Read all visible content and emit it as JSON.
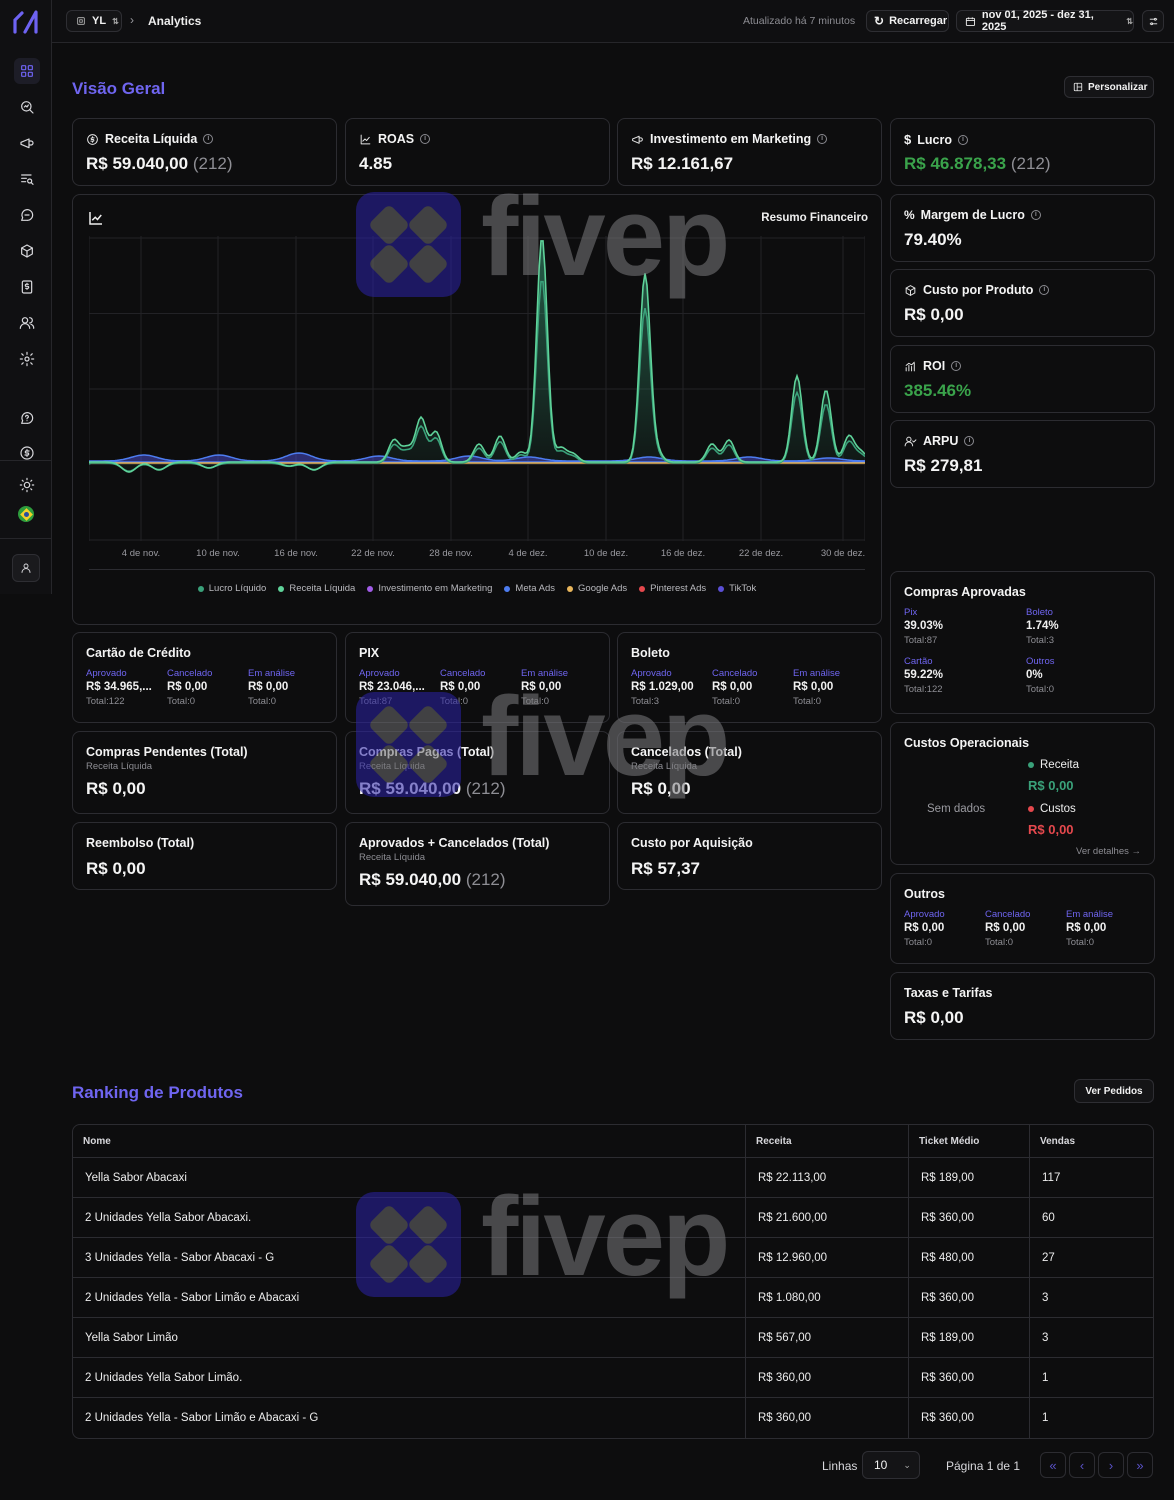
{
  "topbar": {
    "workspace": "YL",
    "breadcrumb": "Analytics",
    "updated": "Atualizado há 7 minutos",
    "reload": "Recarregar",
    "date_range": "nov 01, 2025 - dez 31, 2025"
  },
  "overview": {
    "title": "Visão Geral",
    "customize": "Personalizar",
    "kpis": {
      "receita_label": "Receita Líquida",
      "receita_value": "R$ 59.040,00",
      "receita_count": "(212)",
      "roas_label": "ROAS",
      "roas_value": "4.85",
      "invest_label": "Investimento em Marketing",
      "invest_value": "R$ 12.161,67",
      "lucro_label": "Lucro",
      "lucro_value": "R$ 46.878,33",
      "lucro_count": "(212)",
      "margem_label": "Margem de Lucro",
      "margem_value": "79.40%",
      "custo_prod_label": "Custo por Produto",
      "custo_prod_value": "R$ 0,00",
      "roi_label": "ROI",
      "roi_value": "385.46%",
      "arpu_label": "ARPU",
      "arpu_value": "R$ 279,81"
    }
  },
  "chart_data": {
    "type": "area",
    "title": "Resumo Financeiro",
    "x_ticks": [
      "4 de nov.",
      "10 de nov.",
      "16 de nov.",
      "22 de nov.",
      "28 de nov.",
      "4 de dez.",
      "10 de dez.",
      "16 de dez.",
      "22 de dez.",
      "30 de dez."
    ],
    "series": [
      {
        "name": "Lucro Líquido",
        "color": "#3aa17a"
      },
      {
        "name": "Receita Líquida",
        "color": "#5fd39a"
      },
      {
        "name": "Investimento em Marketing",
        "color": "#a15ce8"
      },
      {
        "name": "Meta Ads",
        "color": "#4d7cf0"
      },
      {
        "name": "Google Ads",
        "color": "#e9b65c"
      },
      {
        "name": "Pinterest Ads",
        "color": "#e5484d"
      },
      {
        "name": "TikTok",
        "color": "#5b4fd6"
      }
    ]
  },
  "payments": {
    "status_labels": {
      "approved": "Aprovado",
      "cancelled": "Cancelado",
      "review": "Em análise"
    },
    "card": {
      "title": "Cartão de Crédito",
      "approved": "R$ 34.965,...",
      "approved_total": "Total:122",
      "cancelled": "R$ 0,00",
      "cancelled_total": "Total:0",
      "review": "R$ 0,00",
      "review_total": "Total:0"
    },
    "pix": {
      "title": "PIX",
      "approved": "R$ 23.046,...",
      "approved_total": "Total:87",
      "cancelled": "R$ 0,00",
      "cancelled_total": "Total:0",
      "review": "R$ 0,00",
      "review_total": "Total:0"
    },
    "boleto": {
      "title": "Boleto",
      "approved": "R$ 1.029,00",
      "approved_total": "Total:3",
      "cancelled": "R$ 0,00",
      "cancelled_total": "Total:0",
      "review": "R$ 0,00",
      "review_total": "Total:0"
    }
  },
  "totals": {
    "subtitle": "Receita Líquida",
    "pendentes_label": "Compras Pendentes (Total)",
    "pendentes_value": "R$ 0,00",
    "pagas_label": "Compras Pagas (Total)",
    "pagas_value": "R$ 59.040,00",
    "pagas_count": "(212)",
    "cancelados_label": "Cancelados (Total)",
    "cancelados_value": "R$ 0,00",
    "reembolso_label": "Reembolso (Total)",
    "reembolso_value": "R$ 0,00",
    "aprov_canc_label": "Aprovados + Cancelados (Total)",
    "aprov_canc_value": "R$ 59.040,00",
    "aprov_canc_count": "(212)",
    "cac_label": "Custo por Aquisição",
    "cac_value": "R$ 57,37"
  },
  "approved_purchases": {
    "title": "Compras Aprovadas",
    "items": [
      {
        "label": "Pix",
        "pct": "39.03%",
        "total": "Total:87"
      },
      {
        "label": "Boleto",
        "pct": "1.74%",
        "total": "Total:3"
      },
      {
        "label": "Cartão",
        "pct": "59.22%",
        "total": "Total:122"
      },
      {
        "label": "Outros",
        "pct": "0%",
        "total": "Total:0"
      }
    ]
  },
  "operational": {
    "title": "Custos Operacionais",
    "no_data": "Sem dados",
    "receita_label": "Receita",
    "receita_value": "R$ 0,00",
    "custos_label": "Custos",
    "custos_value": "R$ 0,00",
    "details": "Ver detalhes",
    "receita_color": "#3aa17a",
    "custos_color": "#e5484d"
  },
  "outros": {
    "title": "Outros",
    "approved": "R$ 0,00",
    "approved_total": "Total:0",
    "cancelled": "R$ 0,00",
    "cancelled_total": "Total:0",
    "review": "R$ 0,00",
    "review_total": "Total:0"
  },
  "taxas": {
    "title": "Taxas e Tarifas",
    "value": "R$ 0,00"
  },
  "ranking": {
    "title": "Ranking de Produtos",
    "view_orders": "Ver Pedidos",
    "columns": [
      "Nome",
      "Receita",
      "Ticket Médio",
      "Vendas"
    ],
    "rows": [
      [
        "Yella Sabor Abacaxi",
        "R$ 22.113,00",
        "R$ 189,00",
        "117"
      ],
      [
        "2 Unidades Yella Sabor Abacaxi.",
        "R$ 21.600,00",
        "R$ 360,00",
        "60"
      ],
      [
        "3 Unidades Yella - Sabor Abacaxi - G",
        "R$ 12.960,00",
        "R$ 480,00",
        "27"
      ],
      [
        "2 Unidades Yella - Sabor Limão e Abacaxi",
        "R$ 1.080,00",
        "R$ 360,00",
        "3"
      ],
      [
        "Yella Sabor Limão",
        "R$ 567,00",
        "R$ 189,00",
        "3"
      ],
      [
        "2 Unidades Yella Sabor Limão.",
        "R$ 360,00",
        "R$ 360,00",
        "1"
      ],
      [
        "2 Unidades Yella - Sabor Limão e Abacaxi - G",
        "R$ 360,00",
        "R$ 360,00",
        "1"
      ]
    ],
    "rows_label": "Linhas",
    "rows_value": "10",
    "page_label": "Página 1 de 1"
  },
  "watermark": "fivep",
  "accent": "#6f65f0"
}
